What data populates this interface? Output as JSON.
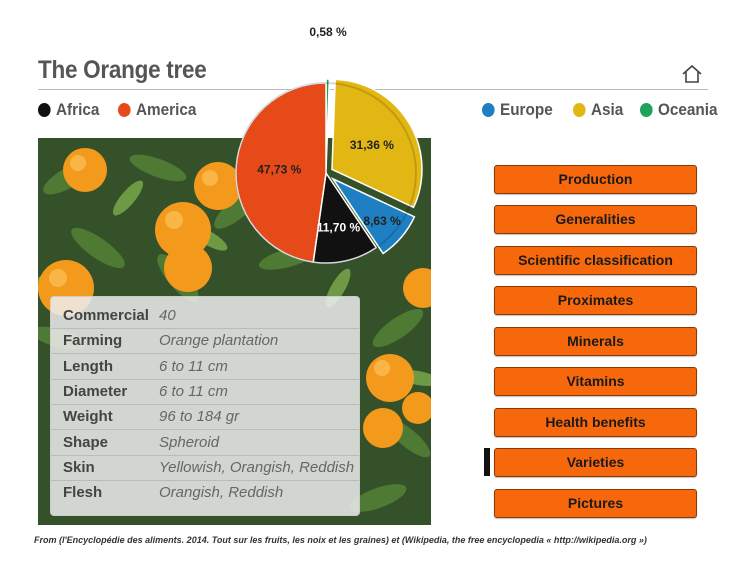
{
  "header": {
    "title": "The Orange tree",
    "home_icon": "home-icon"
  },
  "legend": [
    {
      "label": "Africa",
      "color": "#111111"
    },
    {
      "label": "America",
      "color": "#e64a19"
    },
    {
      "label": "Europe",
      "color": "#1e7fc2"
    },
    {
      "label": "Asia",
      "color": "#e2b713"
    },
    {
      "label": "Oceania",
      "color": "#1fa35a"
    }
  ],
  "chart_data": {
    "type": "pie",
    "slices": [
      {
        "name": "Oceania",
        "value": 0.58,
        "label": "0,58 %",
        "color": "#1fa35a"
      },
      {
        "name": "Asia",
        "value": 31.36,
        "label": "31,36 %",
        "color": "#e2b713"
      },
      {
        "name": "Europe",
        "value": 8.63,
        "label": "8,63 %",
        "color": "#1e7fc2"
      },
      {
        "name": "Africa",
        "value": 11.7,
        "label": "11,70 %",
        "color": "#111111"
      },
      {
        "name": "America",
        "value": 47.73,
        "label": "47,73 %",
        "color": "#e64a19"
      }
    ]
  },
  "info": [
    {
      "key": "Commercial",
      "value": "40"
    },
    {
      "key": "Farming",
      "value": "Orange plantation"
    },
    {
      "key": "Length",
      "value": "6 to 11 cm"
    },
    {
      "key": "Diameter",
      "value": "6 to 11 cm"
    },
    {
      "key": "Weight",
      "value": "96 to 184 gr"
    },
    {
      "key": "Shape",
      "value": "Spheroid"
    },
    {
      "key": "Skin",
      "value": "Yellowish, Orangish, Reddish"
    },
    {
      "key": "Flesh",
      "value": "Orangish, Reddish"
    }
  ],
  "menu": [
    {
      "label": "Production"
    },
    {
      "label": "Generalities"
    },
    {
      "label": "Scientific classification"
    },
    {
      "label": "Proximates"
    },
    {
      "label": "Minerals"
    },
    {
      "label": "Vitamins"
    },
    {
      "label": "Health benefits"
    },
    {
      "label": "Varieties",
      "selected": true
    },
    {
      "label": "Pictures"
    }
  ],
  "footer": {
    "text": "From (l'Encyclopédie des aliments. 2014. Tout sur les fruits, les noix et les graines) et (Wikipedia, the free encyclopedia « http://wikipedia.org »)"
  }
}
